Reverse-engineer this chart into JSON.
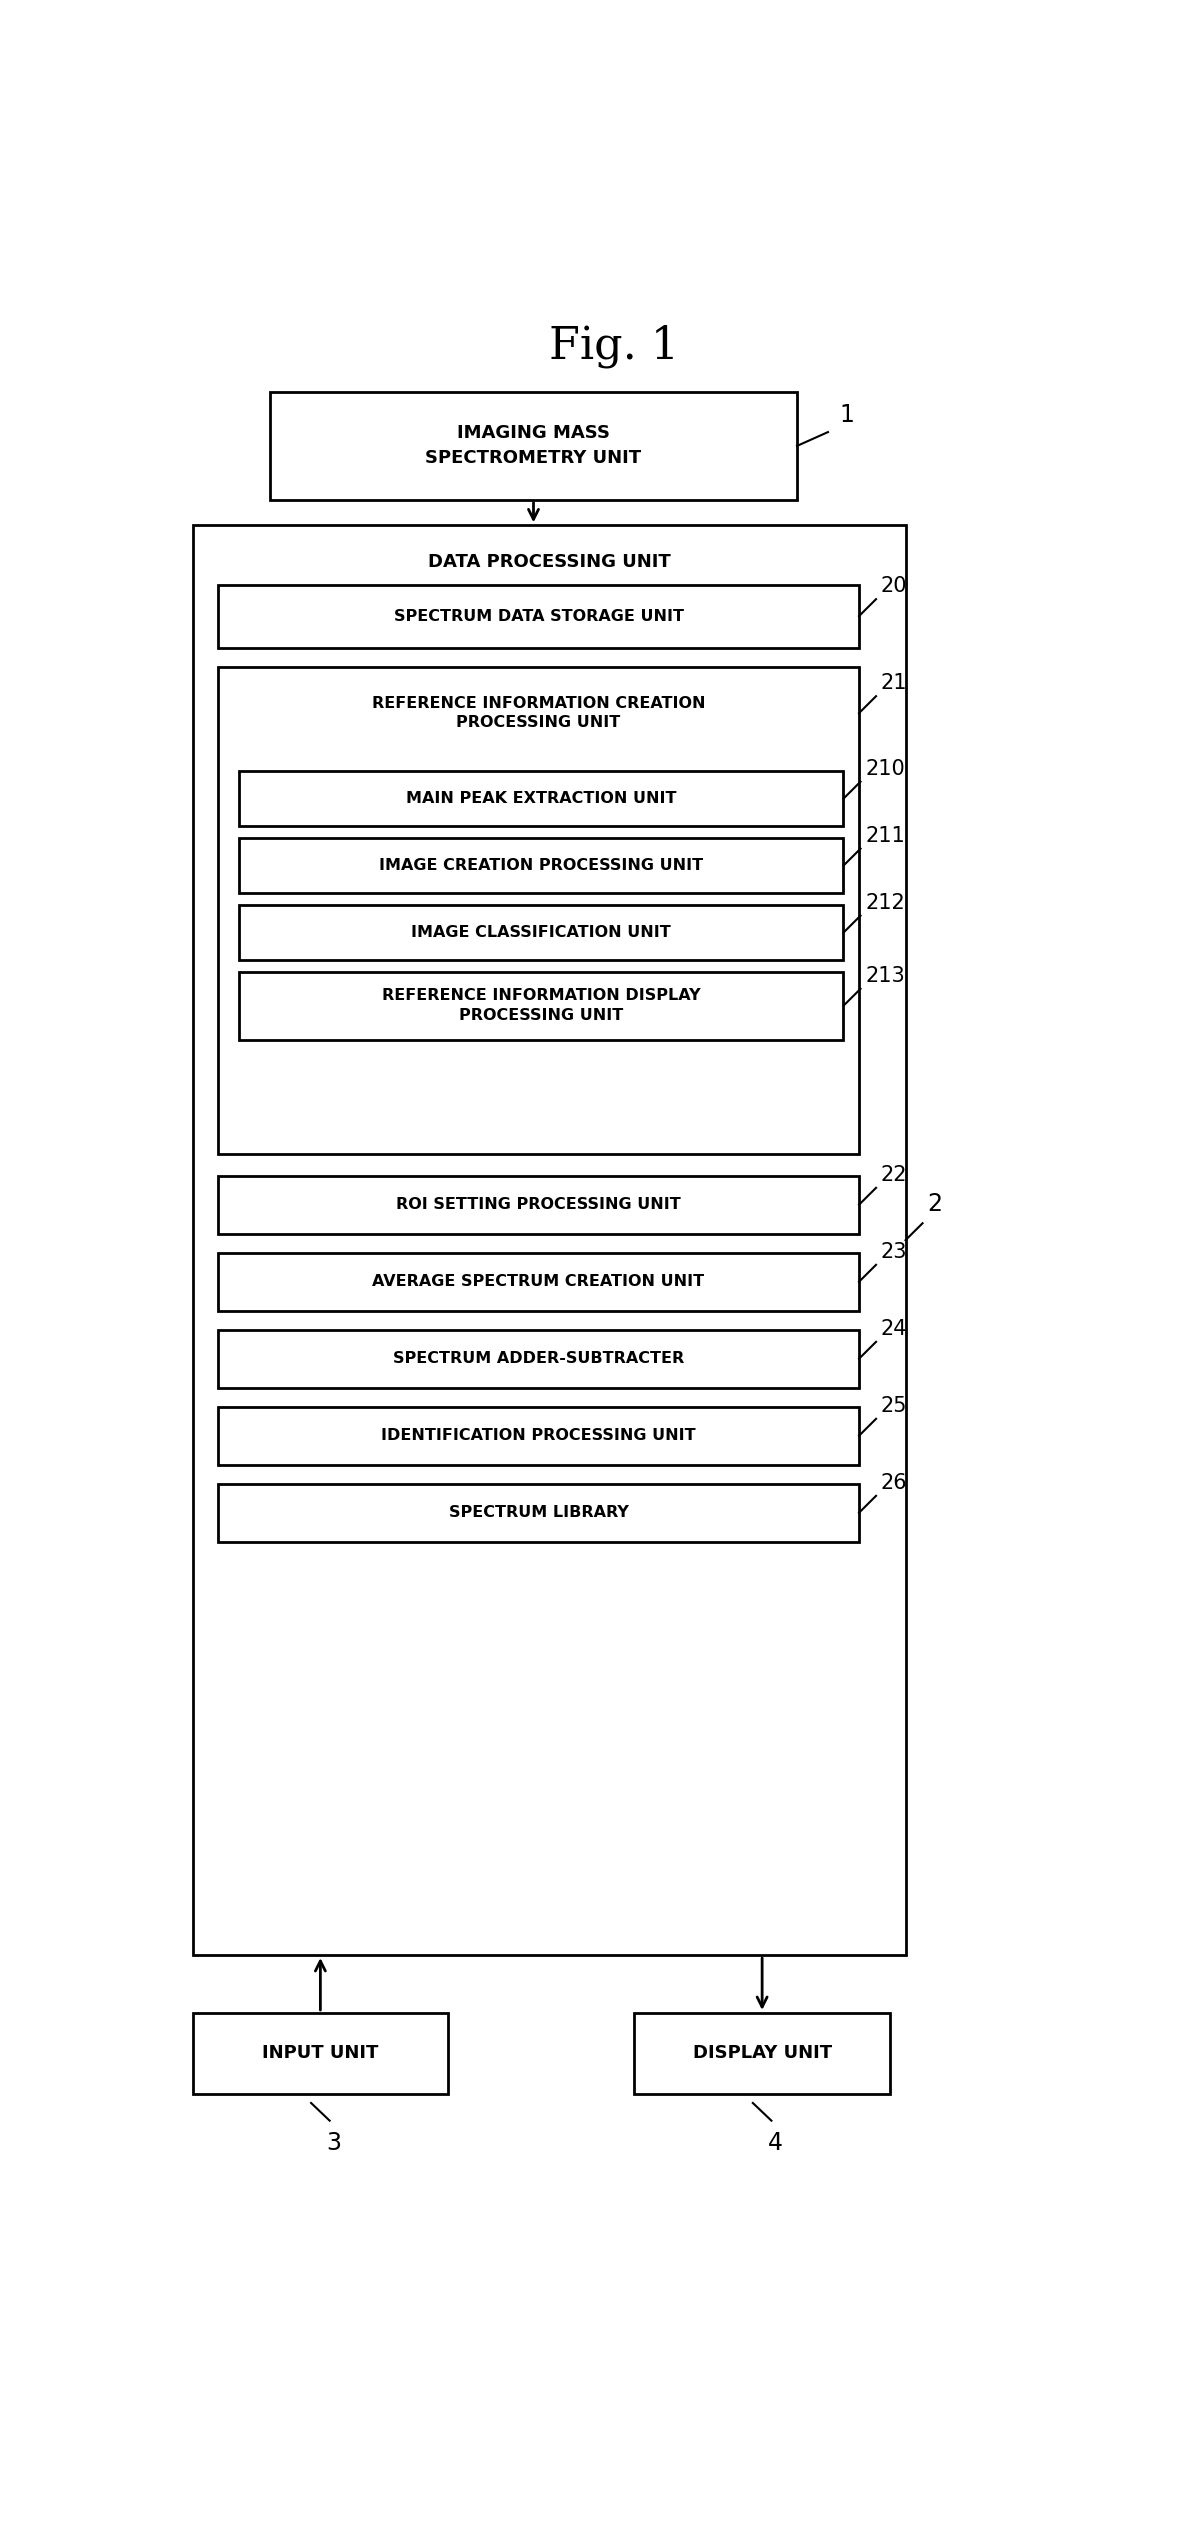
{
  "title": "Fig. 1",
  "title_fontsize": 32,
  "background_color": "#ffffff",
  "text_color": "#000000",
  "label_fontsize": 11.5,
  "ref_fontsize": 15,
  "fig_width": 11.99,
  "fig_height": 25.29,
  "box1_label": "IMAGING MASS\nSPECTROMETRY UNIT",
  "box1_ref": "1",
  "outer_label": "DATA PROCESSING UNIT",
  "outer_ref": "2",
  "blocks": [
    {
      "label": "SPECTRUM DATA STORAGE UNIT",
      "ref": "20",
      "multiline": false
    },
    {
      "label": "REFERENCE INFORMATION CREATION\nPROCESSING UNIT",
      "ref": "21",
      "multiline": true,
      "is_group": true
    },
    {
      "label": "MAIN PEAK EXTRACTION UNIT",
      "ref": "210",
      "multiline": false,
      "sub": true
    },
    {
      "label": "IMAGE CREATION PROCESSING UNIT",
      "ref": "211",
      "multiline": false,
      "sub": true
    },
    {
      "label": "IMAGE CLASSIFICATION UNIT",
      "ref": "212",
      "multiline": false,
      "sub": true
    },
    {
      "label": "REFERENCE INFORMATION DISPLAY\nPROCESSING UNIT",
      "ref": "213",
      "multiline": true,
      "sub": true
    },
    {
      "label": "ROI SETTING PROCESSING UNIT",
      "ref": "22",
      "multiline": false
    },
    {
      "label": "AVERAGE SPECTRUM CREATION UNIT",
      "ref": "23",
      "multiline": false
    },
    {
      "label": "SPECTRUM ADDER-SUBTRACTER",
      "ref": "24",
      "multiline": false
    },
    {
      "label": "IDENTIFICATION PROCESSING UNIT",
      "ref": "25",
      "multiline": false
    },
    {
      "label": "SPECTRUM LIBRARY",
      "ref": "26",
      "multiline": false
    }
  ],
  "input_label": "INPUT UNIT",
  "input_ref": "3",
  "display_label": "DISPLAY UNIT",
  "display_ref": "4"
}
